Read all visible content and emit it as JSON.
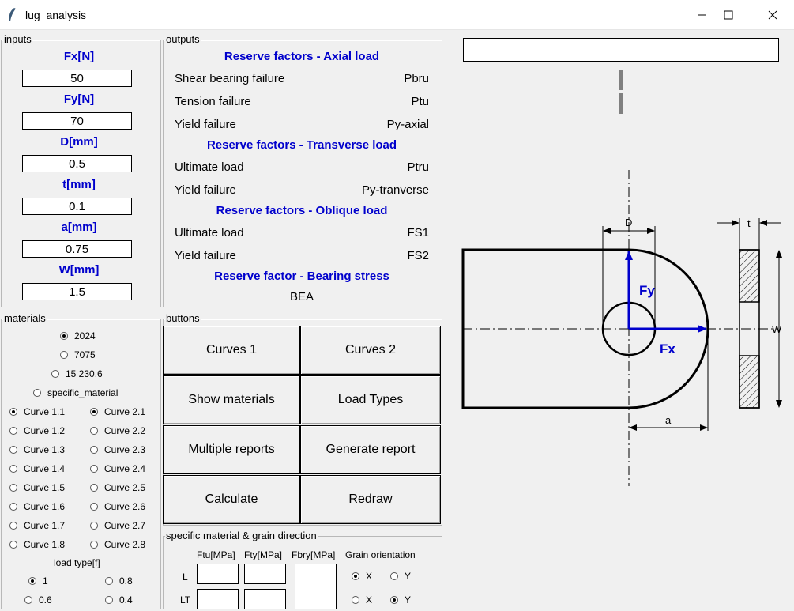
{
  "window": {
    "title": "lug_analysis",
    "minimize": "—",
    "maximize": "☐",
    "close": "✕"
  },
  "inputs": {
    "label": "inputs",
    "fields": [
      {
        "label": "Fx[N]",
        "value": "50"
      },
      {
        "label": "Fy[N]",
        "value": "70"
      },
      {
        "label": "D[mm]",
        "value": "0.5"
      },
      {
        "label": "t[mm]",
        "value": "0.1"
      },
      {
        "label": "a[mm]",
        "value": "0.75"
      },
      {
        "label": "W[mm]",
        "value": "1.5"
      }
    ]
  },
  "outputs": {
    "label": "outputs",
    "axial": {
      "heading": "Reserve factors - Axial load",
      "rows": [
        {
          "name": "Shear bearing failure",
          "value": "Pbru"
        },
        {
          "name": "Tension failure",
          "value": "Ptu"
        },
        {
          "name": "Yield failure",
          "value": "Py-axial"
        }
      ]
    },
    "transverse": {
      "heading": "Reserve factors - Transverse load",
      "rows": [
        {
          "name": "Ultimate load",
          "value": "Ptru"
        },
        {
          "name": "Yield failure",
          "value": "Py-tranverse"
        }
      ]
    },
    "oblique": {
      "heading": "Reserve factors - Oblique load",
      "rows": [
        {
          "name": "Ultimate load",
          "value": "FS1"
        },
        {
          "name": "Yield failure",
          "value": "FS2"
        }
      ]
    },
    "bearing": {
      "heading": "Reserve factor - Bearing stress",
      "value": "BEA"
    }
  },
  "materials": {
    "label": "materials",
    "options": [
      {
        "label": "2024",
        "selected": true
      },
      {
        "label": "7075",
        "selected": false
      },
      {
        "label": "15 230.6",
        "selected": false
      },
      {
        "label": "specific_material",
        "selected": false
      }
    ],
    "curves_col1": [
      {
        "label": "Curve 1.1",
        "selected": true
      },
      {
        "label": "Curve 1.2",
        "selected": false
      },
      {
        "label": "Curve 1.3",
        "selected": false
      },
      {
        "label": "Curve 1.4",
        "selected": false
      },
      {
        "label": "Curve 1.5",
        "selected": false
      },
      {
        "label": "Curve 1.6",
        "selected": false
      },
      {
        "label": "Curve 1.7",
        "selected": false
      },
      {
        "label": "Curve 1.8",
        "selected": false
      }
    ],
    "curves_col2": [
      {
        "label": "Curve 2.1",
        "selected": true
      },
      {
        "label": "Curve 2.2",
        "selected": false
      },
      {
        "label": "Curve 2.3",
        "selected": false
      },
      {
        "label": "Curve 2.4",
        "selected": false
      },
      {
        "label": "Curve 2.5",
        "selected": false
      },
      {
        "label": "Curve 2.6",
        "selected": false
      },
      {
        "label": "Curve 2.7",
        "selected": false
      },
      {
        "label": "Curve 2.8",
        "selected": false
      }
    ],
    "load_type": {
      "label": "load type[f]",
      "options": [
        {
          "label": "1",
          "selected": true
        },
        {
          "label": "0.8",
          "selected": false
        },
        {
          "label": "0.6",
          "selected": false
        },
        {
          "label": "0.4",
          "selected": false
        }
      ]
    }
  },
  "buttons": {
    "label": "buttons",
    "items": [
      "Curves 1",
      "Curves 2",
      "Show materials",
      "Load Types",
      "Multiple reports",
      "Generate report",
      "Calculate",
      "Redraw"
    ]
  },
  "specific_material": {
    "label": "specific material & grain direction",
    "columns": [
      "Ftu[MPa]",
      "Fty[MPa]",
      "Fbry[MPa]",
      "Grain orientation"
    ],
    "rows": [
      "L",
      "LT"
    ],
    "grain_row1": [
      {
        "label": "X",
        "selected": true
      },
      {
        "label": "Y",
        "selected": false
      }
    ],
    "grain_row2": [
      {
        "label": "X",
        "selected": false
      },
      {
        "label": "Y",
        "selected": true
      }
    ]
  },
  "drawing": {
    "labels": {
      "d": "D",
      "t": "t",
      "w": "W",
      "a": "a",
      "fx": "Fx",
      "fy": "Fy"
    },
    "colors": {
      "force": "#0000cc",
      "label_blue": "#0000cc"
    }
  }
}
